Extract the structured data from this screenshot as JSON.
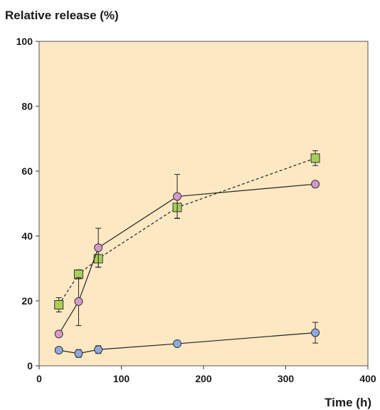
{
  "chart_data": {
    "type": "line",
    "title": "",
    "ylabel": "Relative release (%)",
    "xlabel": "Time (h)",
    "xlim": [
      0,
      400
    ],
    "ylim": [
      0,
      100
    ],
    "xticks": [
      0,
      100,
      200,
      300,
      400
    ],
    "yticks": [
      0,
      20,
      40,
      60,
      80,
      100
    ],
    "grid": false,
    "legend": "none",
    "plot_background": "#fde8c4",
    "series": [
      {
        "marker": "square",
        "line_style": "dashed",
        "marker_color": "#a8cf5a",
        "x": [
          24,
          48,
          72,
          168,
          336
        ],
        "y": [
          18.8,
          28.2,
          33.0,
          48.8,
          64.0
        ],
        "error": [
          2.2,
          1.4,
          2.6,
          3.3,
          2.3
        ]
      },
      {
        "marker": "circle",
        "line_style": "solid",
        "marker_color": "#d49ac7",
        "x": [
          24,
          48,
          72,
          168,
          336
        ],
        "y": [
          9.8,
          19.8,
          36.4,
          52.2,
          56.0
        ],
        "error": [
          0.0,
          7.4,
          6.0,
          6.8,
          0.9
        ]
      },
      {
        "marker": "circle",
        "line_style": "solid",
        "marker_color": "#8fa9dc",
        "x": [
          24,
          48,
          72,
          168,
          336
        ],
        "y": [
          4.8,
          3.8,
          5.0,
          6.8,
          10.2
        ],
        "error": [
          0.0,
          1.2,
          1.2,
          0.0,
          3.2
        ]
      }
    ]
  }
}
